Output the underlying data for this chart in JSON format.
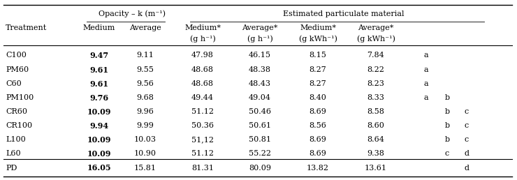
{
  "rows": [
    [
      "C100",
      "9.47",
      "9.11",
      "47.98",
      "46.15",
      "8.15",
      "7.84",
      "a",
      "",
      ""
    ],
    [
      "PM60",
      "9.61",
      "9.55",
      "48.68",
      "48.38",
      "8.27",
      "8.22",
      "a",
      "",
      ""
    ],
    [
      "C60",
      "9.61",
      "9.56",
      "48.68",
      "48.43",
      "8.27",
      "8.23",
      "a",
      "",
      ""
    ],
    [
      "PM100",
      "9.76",
      "9.68",
      "49.44",
      "49.04",
      "8.40",
      "8.33",
      "a",
      "b",
      ""
    ],
    [
      "CR60",
      "10.09",
      "9.96",
      "51.12",
      "50.46",
      "8.69",
      "8.58",
      "",
      "b",
      "c"
    ],
    [
      "CR100",
      "9.94",
      "9.99",
      "50.36",
      "50.61",
      "8.56",
      "8.60",
      "",
      "b",
      "c"
    ],
    [
      "L100",
      "10.09",
      "10.03",
      "51,12",
      "50.81",
      "8.69",
      "8.64",
      "",
      "b",
      "c"
    ],
    [
      "L60",
      "10.09",
      "10.90",
      "51.12",
      "55.22",
      "8.69",
      "9.38",
      "",
      "c",
      "d"
    ],
    [
      "PD",
      "16.05",
      "15.81",
      "81.31",
      "80.09",
      "13.82",
      "13.61",
      "",
      "",
      "d"
    ]
  ],
  "fig_width": 7.4,
  "fig_height": 2.58,
  "dpi": 100,
  "font_size": 8.0,
  "background": "#ffffff"
}
